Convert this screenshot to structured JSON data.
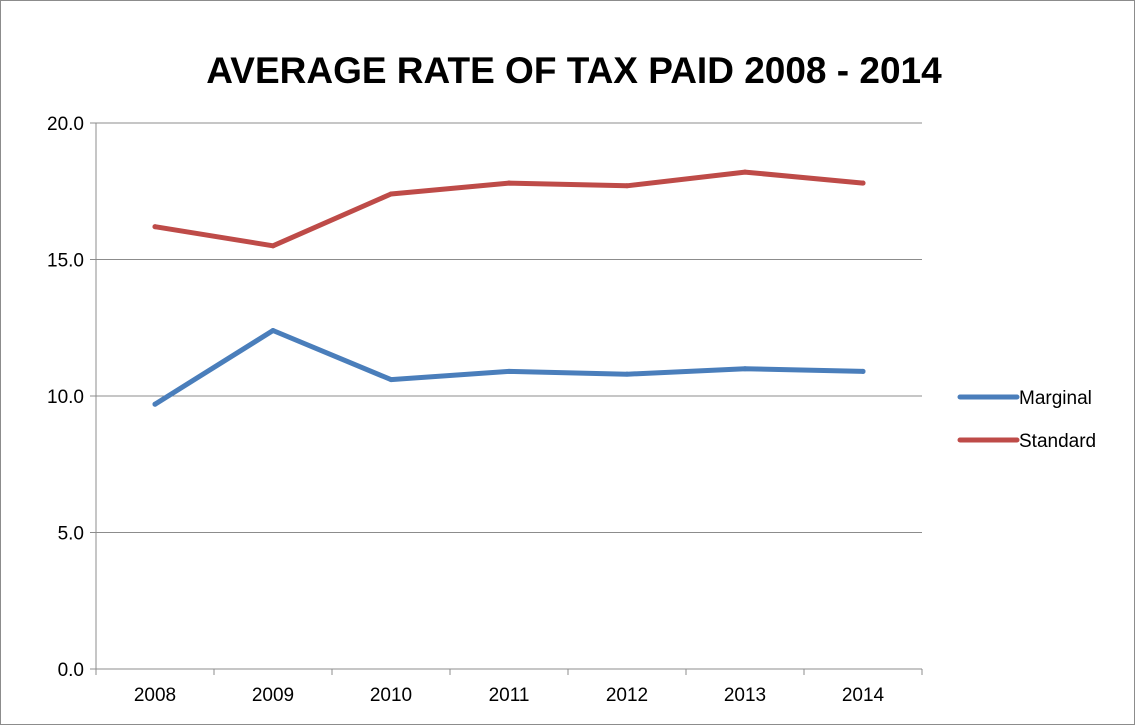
{
  "chart_data": {
    "type": "line",
    "title": "AVERAGE RATE OF TAX PAID 2008 - 2014",
    "xlabel": "",
    "ylabel": "",
    "categories": [
      "2008",
      "2009",
      "2010",
      "2011",
      "2012",
      "2013",
      "2014"
    ],
    "series": [
      {
        "name": "Marginal",
        "color": "#4a7ebb",
        "values": [
          9.7,
          12.4,
          10.6,
          10.9,
          10.8,
          11.0,
          10.9
        ]
      },
      {
        "name": "Standard",
        "color": "#be4b48",
        "values": [
          16.2,
          15.5,
          17.4,
          17.8,
          17.7,
          18.2,
          17.8
        ]
      }
    ],
    "ylim": [
      0,
      20
    ],
    "yticks": [
      "0.0",
      "5.0",
      "10.0",
      "15.0",
      "20.0"
    ],
    "grid": true,
    "legend_position": "right"
  },
  "colors": {
    "gridline": "#8c8c8c",
    "axis": "#8c8c8c"
  }
}
